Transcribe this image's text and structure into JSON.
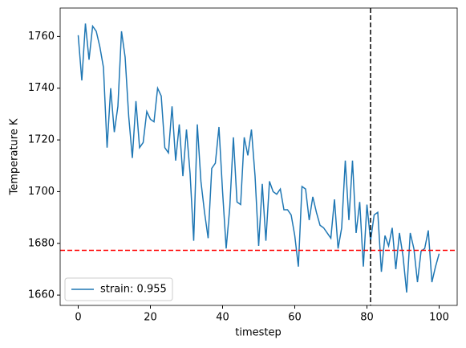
{
  "chart_data": {
    "type": "line",
    "xlabel": "timestep",
    "ylabel": "Temperature K",
    "x": [
      0,
      1,
      2,
      3,
      4,
      5,
      6,
      7,
      8,
      9,
      10,
      11,
      12,
      13,
      14,
      15,
      16,
      17,
      18,
      19,
      20,
      21,
      22,
      23,
      24,
      25,
      26,
      27,
      28,
      29,
      30,
      31,
      32,
      33,
      34,
      35,
      36,
      37,
      38,
      39,
      40,
      41,
      42,
      43,
      44,
      45,
      46,
      47,
      48,
      49,
      50,
      51,
      52,
      53,
      54,
      55,
      56,
      57,
      58,
      59,
      60,
      61,
      62,
      63,
      64,
      65,
      66,
      67,
      68,
      69,
      70,
      71,
      72,
      73,
      74,
      75,
      76,
      77,
      78,
      79,
      80,
      81,
      82,
      83,
      84,
      85,
      86,
      87,
      88,
      89,
      90,
      91,
      92,
      93,
      94,
      95,
      96,
      97,
      98,
      99,
      100
    ],
    "series": [
      {
        "name": "strain: 0.955",
        "color": "#1f77b4",
        "values": [
          1760.5,
          1743,
          1765,
          1751,
          1764,
          1762,
          1756,
          1748,
          1717,
          1740,
          1723,
          1733,
          1762,
          1752,
          1729,
          1713,
          1735,
          1717,
          1719,
          1731,
          1728,
          1727,
          1740,
          1737,
          1717,
          1715,
          1733,
          1712,
          1726,
          1706,
          1724,
          1707,
          1681,
          1726,
          1704,
          1692,
          1682,
          1709,
          1711,
          1725,
          1700,
          1678,
          1694,
          1721,
          1696,
          1695,
          1721,
          1714,
          1724,
          1706,
          1679,
          1703,
          1681,
          1704,
          1700,
          1699,
          1701,
          1693,
          1693,
          1691,
          1683,
          1671,
          1702,
          1701,
          1689,
          1698,
          1692,
          1687,
          1686,
          1684,
          1682,
          1697,
          1678,
          1686,
          1712,
          1689,
          1712,
          1684,
          1696,
          1671,
          1695,
          1681,
          1691,
          1692,
          1669,
          1683,
          1679,
          1686,
          1670,
          1684,
          1675,
          1661,
          1684,
          1678,
          1665,
          1677,
          1678,
          1685,
          1665,
          1671,
          1676
        ]
      }
    ],
    "hlines": [
      {
        "value": 1677.3,
        "color": "#ff0000"
      }
    ],
    "vlines": [
      {
        "value": 81,
        "color": "#000000"
      }
    ],
    "xlim": [
      -5,
      105
    ],
    "ylim": [
      1656,
      1771
    ],
    "xticks": [
      0,
      20,
      40,
      60,
      80,
      100
    ],
    "yticks": [
      1660,
      1680,
      1700,
      1720,
      1740,
      1760
    ],
    "legend": "lower left"
  }
}
